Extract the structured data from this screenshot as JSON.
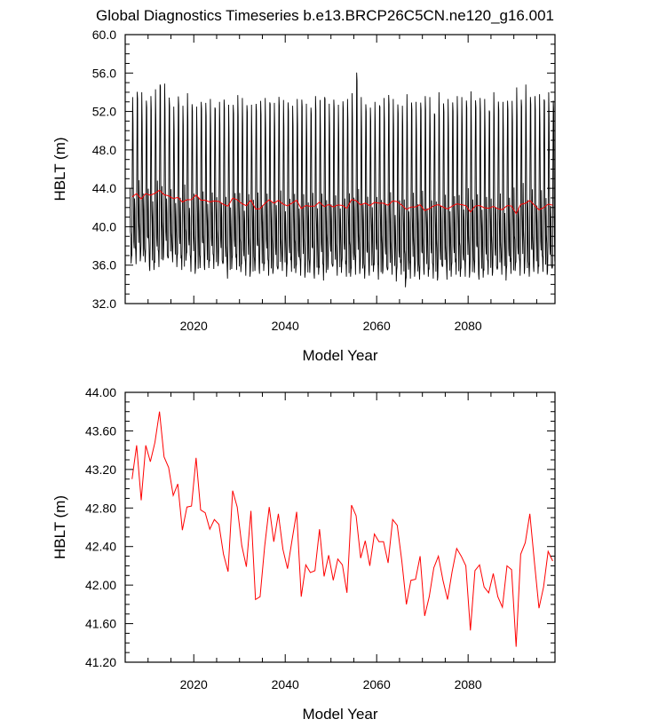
{
  "title": "Global Diagnostics Timeseries b.e13.BRCP26C5CN.ne120_g16.001",
  "chart_data": [
    {
      "type": "line",
      "xlabel": "Model Year",
      "ylabel": "HBLT (m)",
      "xlim": [
        2005,
        2099
      ],
      "ylim": [
        32.0,
        60.0
      ],
      "xticks": [
        "2020",
        "2040",
        "2060",
        "2080"
      ],
      "xtick_values": [
        2020,
        2040,
        2060,
        2080
      ],
      "yticks": [
        "32.0",
        "36.0",
        "40.0",
        "44.0",
        "48.0",
        "52.0",
        "56.0",
        "60.0"
      ],
      "ytick_values": [
        32,
        36,
        40,
        44,
        48,
        52,
        56,
        60
      ],
      "series": [
        {
          "kind": "monthly",
          "color": "#000000",
          "description": "monthly values, annual cycle",
          "years": [
            2006,
            2007,
            2008,
            2009,
            2010,
            2011,
            2012,
            2013,
            2014,
            2015,
            2016,
            2017,
            2018,
            2019,
            2020,
            2021,
            2022,
            2023,
            2024,
            2025,
            2026,
            2027,
            2028,
            2029,
            2030,
            2031,
            2032,
            2033,
            2034,
            2035,
            2036,
            2037,
            2038,
            2039,
            2040,
            2041,
            2042,
            2043,
            2044,
            2045,
            2046,
            2047,
            2048,
            2049,
            2050,
            2051,
            2052,
            2053,
            2054,
            2055,
            2056,
            2057,
            2058,
            2059,
            2060,
            2061,
            2062,
            2063,
            2064,
            2065,
            2066,
            2067,
            2068,
            2069,
            2070,
            2071,
            2072,
            2073,
            2074,
            2075,
            2076,
            2077,
            2078,
            2079,
            2080,
            2081,
            2082,
            2083,
            2084,
            2085,
            2086,
            2087,
            2088,
            2089,
            2090,
            2091,
            2092,
            2093,
            2094,
            2095,
            2096,
            2097,
            2098
          ],
          "annual_max": [
            53.5,
            54.6,
            54.0,
            54.2,
            53.6,
            54.3,
            55.8,
            54.9,
            53.8,
            52.5,
            54.3,
            52.6,
            53.9,
            53.3,
            52.5,
            54.1,
            52.9,
            53.3,
            53.3,
            53.0,
            53.6,
            52.7,
            53.4,
            53.7,
            53.4,
            53.2,
            52.7,
            53.9,
            53.1,
            53.4,
            53.9,
            52.9,
            53.9,
            53.2,
            53.7,
            52.6,
            53.3,
            53.8,
            52.8,
            53.5,
            53.6,
            53.2,
            54.5,
            52.8,
            53.6,
            52.7,
            53.8,
            53.3,
            53.9,
            56.7,
            53.5,
            53.9,
            52.4,
            53.0,
            53.6,
            53.4,
            54.1,
            53.3,
            53.5,
            52.6,
            53.8,
            53.5,
            53.0,
            54.1,
            53.6,
            53.5,
            52.7,
            54.0,
            53.2,
            53.3,
            53.7,
            53.6,
            53.5,
            53.7,
            54.1,
            54.3,
            53.4,
            53.3,
            53.0,
            54.0,
            53.4,
            53.0,
            53.9,
            53.1,
            54.5,
            53.8,
            54.8,
            54.7,
            53.6,
            53.8,
            54.2,
            54.0,
            53.5
          ],
          "annual_min": [
            36.0,
            36.1,
            36.4,
            36.3,
            35.4,
            35.5,
            35.8,
            36.5,
            36.0,
            36.3,
            35.8,
            35.5,
            36.3,
            35.3,
            35.1,
            35.7,
            35.5,
            35.7,
            35.6,
            35.9,
            35.4,
            34.6,
            35.6,
            35.5,
            35.1,
            34.9,
            34.8,
            35.4,
            35.1,
            35.4,
            34.9,
            35.1,
            34.8,
            35.4,
            34.8,
            35.3,
            35.0,
            34.9,
            34.7,
            35.2,
            34.6,
            35.0,
            34.4,
            35.5,
            35.1,
            34.9,
            35.2,
            34.8,
            34.6,
            35.0,
            35.1,
            34.6,
            34.9,
            35.3,
            34.5,
            35.1,
            34.7,
            35.0,
            34.3,
            35.0,
            33.5,
            34.6,
            34.8,
            34.5,
            35.0,
            34.8,
            34.6,
            34.4,
            35.1,
            34.5,
            34.8,
            35.0,
            34.6,
            34.8,
            34.7,
            35.2,
            34.5,
            34.7,
            35.0,
            34.9,
            34.8,
            35.0,
            34.4,
            35.1,
            35.2,
            34.9,
            35.1,
            34.8,
            35.3,
            35.1,
            35.3,
            35.0,
            34.9
          ]
        },
        {
          "kind": "annual",
          "color": "#ff0000",
          "description": "annual mean"
        }
      ]
    },
    {
      "type": "line",
      "xlabel": "Model Year",
      "ylabel": "HBLT (m)",
      "xlim": [
        2005,
        2099
      ],
      "ylim": [
        41.2,
        44.0
      ],
      "xticks": [
        "2020",
        "2040",
        "2060",
        "2080"
      ],
      "xtick_values": [
        2020,
        2040,
        2060,
        2080
      ],
      "yticks": [
        "41.20",
        "41.60",
        "42.00",
        "42.40",
        "42.80",
        "43.20",
        "43.60",
        "44.00"
      ],
      "ytick_values": [
        41.2,
        41.6,
        42.0,
        42.4,
        42.8,
        43.2,
        43.6,
        44.0
      ],
      "series": [
        {
          "kind": "annual",
          "color": "#ff0000",
          "x": [
            2006,
            2007,
            2008,
            2009,
            2010,
            2011,
            2012,
            2013,
            2014,
            2015,
            2016,
            2017,
            2018,
            2019,
            2020,
            2021,
            2022,
            2023,
            2024,
            2025,
            2026,
            2027,
            2028,
            2029,
            2030,
            2031,
            2032,
            2033,
            2034,
            2035,
            2036,
            2037,
            2038,
            2039,
            2040,
            2041,
            2042,
            2043,
            2044,
            2045,
            2046,
            2047,
            2048,
            2049,
            2050,
            2051,
            2052,
            2053,
            2054,
            2055,
            2056,
            2057,
            2058,
            2059,
            2060,
            2061,
            2062,
            2063,
            2064,
            2065,
            2066,
            2067,
            2068,
            2069,
            2070,
            2071,
            2072,
            2073,
            2074,
            2075,
            2076,
            2077,
            2078,
            2079,
            2080,
            2081,
            2082,
            2083,
            2084,
            2085,
            2086,
            2087,
            2088,
            2089,
            2090,
            2091,
            2092,
            2093,
            2094,
            2095,
            2096,
            2097,
            2098
          ],
          "y": [
            43.1,
            43.45,
            42.88,
            43.45,
            43.28,
            43.48,
            43.8,
            43.33,
            43.22,
            42.93,
            43.05,
            42.57,
            42.81,
            42.82,
            43.32,
            42.78,
            42.75,
            42.58,
            42.68,
            42.63,
            42.32,
            42.14,
            42.98,
            42.81,
            42.41,
            42.19,
            42.77,
            41.85,
            41.88,
            42.4,
            42.81,
            42.45,
            42.74,
            42.37,
            42.17,
            42.47,
            42.76,
            41.88,
            42.21,
            42.13,
            42.15,
            42.58,
            42.09,
            42.31,
            42.05,
            42.27,
            42.21,
            41.92,
            42.83,
            42.72,
            42.28,
            42.46,
            42.2,
            42.53,
            42.45,
            42.45,
            42.23,
            42.68,
            42.62,
            42.25,
            41.8,
            42.05,
            42.06,
            42.3,
            41.68,
            41.88,
            42.18,
            42.3,
            42.05,
            41.85,
            42.14,
            42.38,
            42.3,
            42.2,
            41.53,
            42.15,
            42.21,
            41.98,
            41.92,
            42.12,
            41.88,
            41.77,
            42.2,
            42.16,
            41.36,
            42.32,
            42.44,
            42.74,
            42.24,
            41.76,
            41.98,
            42.35,
            42.25
          ]
        }
      ]
    }
  ]
}
